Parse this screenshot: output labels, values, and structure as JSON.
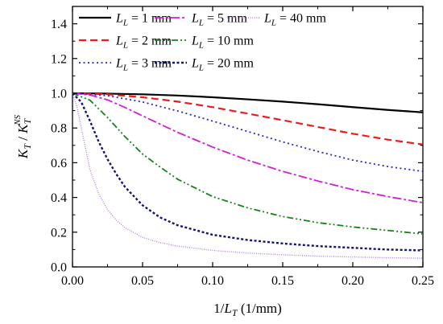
{
  "chart_data": {
    "type": "line",
    "xlabel": {
      "prefix": "1/",
      "var": "L",
      "sub": "T",
      "suffix": " (1/mm)"
    },
    "ylabel": {
      "var": "K",
      "sub": "T",
      "sep": " / ",
      "var2": "K",
      "sub2": "T",
      "sup2": "NS"
    },
    "xlim": [
      0.0,
      0.25
    ],
    "ylim": [
      0.0,
      1.5
    ],
    "xticks": [
      "0.00",
      "0.05",
      "0.10",
      "0.15",
      "0.20",
      "0.25"
    ],
    "yticks": [
      "0.0",
      "0.2",
      "0.4",
      "0.6",
      "0.8",
      "1.0",
      "1.2",
      "1.4"
    ],
    "grid": false,
    "legend_position": "top-left",
    "series": [
      {
        "name": "1 mm",
        "color": "#000000",
        "dash": "solid",
        "x": [
          0,
          0.025,
          0.05,
          0.075,
          0.1,
          0.125,
          0.15,
          0.175,
          0.2,
          0.225,
          0.25
        ],
        "y": [
          1.0,
          0.998,
          0.994,
          0.987,
          0.977,
          0.965,
          0.952,
          0.937,
          0.92,
          0.904,
          0.89
        ]
      },
      {
        "name": "2 mm",
        "color": "#ee1c1c",
        "dash": "dashed",
        "x": [
          0,
          0.025,
          0.05,
          0.075,
          0.1,
          0.125,
          0.15,
          0.175,
          0.2,
          0.225,
          0.25
        ],
        "y": [
          1.0,
          0.994,
          0.977,
          0.952,
          0.92,
          0.883,
          0.845,
          0.806,
          0.767,
          0.733,
          0.705
        ]
      },
      {
        "name": "3 mm",
        "color": "#2424e0",
        "dash": "dotted",
        "x": [
          0,
          0.025,
          0.05,
          0.075,
          0.1,
          0.125,
          0.15,
          0.175,
          0.2,
          0.225,
          0.25
        ],
        "y": [
          1.0,
          0.986,
          0.95,
          0.898,
          0.84,
          0.78,
          0.72,
          0.665,
          0.615,
          0.578,
          0.55
        ]
      },
      {
        "name": "5 mm",
        "color": "#d81bd8",
        "dash": "dashdot",
        "x": [
          0,
          0.0125,
          0.025,
          0.0375,
          0.05,
          0.075,
          0.1,
          0.125,
          0.15,
          0.175,
          0.2,
          0.225,
          0.25
        ],
        "y": [
          1.0,
          0.99,
          0.962,
          0.918,
          0.87,
          0.775,
          0.69,
          0.615,
          0.55,
          0.495,
          0.445,
          0.405,
          0.37
        ]
      },
      {
        "name": "10 mm",
        "color": "#1a801a",
        "dash": "dashdotdot",
        "x": [
          0,
          0.0125,
          0.025,
          0.0375,
          0.05,
          0.0625,
          0.075,
          0.1,
          0.125,
          0.15,
          0.175,
          0.2,
          0.225,
          0.25
        ],
        "y": [
          1.0,
          0.96,
          0.86,
          0.75,
          0.65,
          0.575,
          0.505,
          0.405,
          0.34,
          0.29,
          0.255,
          0.23,
          0.21,
          0.19
        ]
      },
      {
        "name": "20 mm",
        "color": "#141475",
        "dash": "shortdot",
        "x": [
          0,
          0.00625,
          0.0125,
          0.01875,
          0.025,
          0.03125,
          0.0375,
          0.05,
          0.0625,
          0.075,
          0.1,
          0.125,
          0.15,
          0.175,
          0.2,
          0.225,
          0.25
        ],
        "y": [
          1.0,
          0.95,
          0.84,
          0.72,
          0.62,
          0.535,
          0.46,
          0.355,
          0.285,
          0.24,
          0.185,
          0.155,
          0.135,
          0.12,
          0.11,
          0.1,
          0.095
        ]
      },
      {
        "name": "40 mm",
        "color": "#b27fe8",
        "dash": "finedot",
        "x": [
          0,
          0.003,
          0.00625,
          0.0125,
          0.01875,
          0.025,
          0.03125,
          0.0375,
          0.05,
          0.0625,
          0.075,
          0.1,
          0.125,
          0.15,
          0.175,
          0.2,
          0.225,
          0.25
        ],
        "y": [
          1.0,
          0.93,
          0.8,
          0.56,
          0.42,
          0.33,
          0.27,
          0.225,
          0.17,
          0.14,
          0.12,
          0.095,
          0.08,
          0.07,
          0.062,
          0.057,
          0.053,
          0.05
        ]
      }
    ],
    "legend_var": "L",
    "legend_sub": "L",
    "legend_eq": " = "
  }
}
